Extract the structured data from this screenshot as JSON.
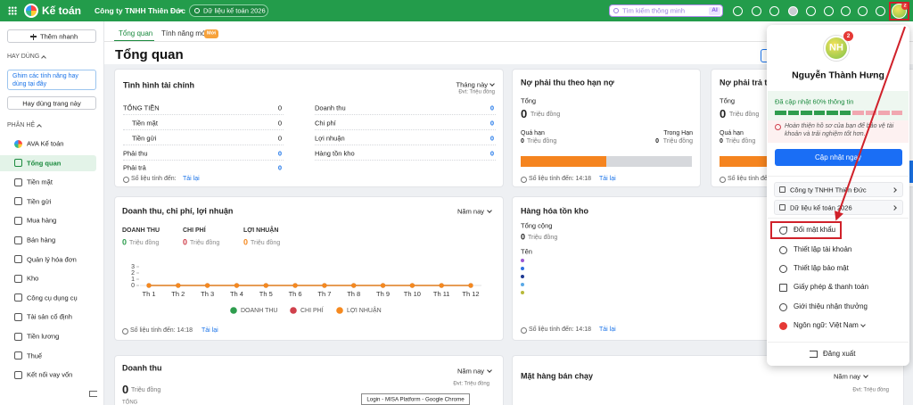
{
  "topbar": {
    "app_name": "Kế toán",
    "company": "Công ty TNHH Thiên Đức",
    "dataset": "Dữ liệu kế toán 2026",
    "search_placeholder": "Tìm kiếm thông minh",
    "ai_badge": "AI",
    "avatar_badge": "2"
  },
  "sidebar": {
    "quick_add": "Thêm nhanh",
    "favorites_heading": "HAY DÙNG",
    "favorites_hint": "Ghim các tính năng hay dùng tại đây",
    "favorite_page_button": "Hay dùng trang này",
    "modules_heading": "PHÂN HỆ",
    "modules": [
      "AVA Kế toán",
      "Tổng quan",
      "Tiền mặt",
      "Tiền gửi",
      "Mua hàng",
      "Bán hàng",
      "Quản lý hóa đơn",
      "Kho",
      "Công cụ dụng cụ",
      "Tài sản cố định",
      "Tiền lương",
      "Thuế",
      "Kết nối vay vốn"
    ]
  },
  "tabs": [
    {
      "label": "Tổng quan"
    },
    {
      "label": "Tính năng mới",
      "badge": "Mới"
    }
  ],
  "page_title": "Tổng quan",
  "financial_card": {
    "title": "Tình hình tài chính",
    "period": "Tháng này",
    "unit": "Đvt: Triệu đồng",
    "left_rows": [
      [
        "TỔNG TIỀN",
        "0"
      ],
      [
        "Tiền mặt",
        "0"
      ],
      [
        "Tiền gửi",
        "0"
      ],
      [
        "Phải thu",
        "0"
      ],
      [
        "Phải trả",
        "0"
      ]
    ],
    "right_rows": [
      [
        "Doanh thu",
        "0"
      ],
      [
        "Chi phí",
        "0"
      ],
      [
        "Lợi nhuận",
        "0"
      ],
      [
        "Hàng tồn kho",
        "0"
      ]
    ],
    "footer": "Số liệu tính đến:",
    "reload": "Tải lại"
  },
  "receivable_card": {
    "title": "Nợ phải thu theo hạn nợ",
    "total_label": "Tổng",
    "total": "0",
    "unit": "Triệu đồng",
    "overdue_label": "Quá hạn",
    "overdue": "0",
    "in_term_label": "Trong Hạn",
    "in_term": "0",
    "footer": "Số liệu tính đến: 14:18",
    "reload": "Tải lại"
  },
  "payable_card": {
    "title": "Nợ phải trả theo hạn nợ",
    "total_label": "Tổng",
    "total": "0",
    "unit": "Triệu đồng",
    "overdue_label": "Quá hạn",
    "overdue": "0",
    "footer": "Số liệu tính đến:"
  },
  "pnl_card": {
    "title": "Doanh thu, chi phí, lợi nhuận",
    "period": "Năm nay",
    "metrics": [
      {
        "label": "DOANH THU",
        "value": "0",
        "unit": "Triệu đồng"
      },
      {
        "label": "CHI PHÍ",
        "value": "0",
        "unit": "Triệu đồng"
      },
      {
        "label": "LỢI NHUẬN",
        "value": "0",
        "unit": "Triệu đồng"
      }
    ],
    "chart": {
      "type": "line",
      "categories": [
        "Th 1",
        "Th 2",
        "Th 3",
        "Th 4",
        "Th 5",
        "Th 6",
        "Th 7",
        "Th 8",
        "Th 9",
        "Th 10",
        "Th 11",
        "Th 12"
      ],
      "series": [
        {
          "name": "DOANH THU",
          "color": "#2e9d4e",
          "values": [
            0,
            0,
            0,
            0,
            0,
            0,
            0,
            0,
            0,
            0,
            0,
            0
          ]
        },
        {
          "name": "CHI PHÍ",
          "color": "#d0404c",
          "values": [
            0,
            0,
            0,
            0,
            0,
            0,
            0,
            0,
            0,
            0,
            0,
            0
          ]
        },
        {
          "name": "LỢI NHUẬN",
          "color": "#f5891f",
          "values": [
            0,
            0,
            0,
            0,
            0,
            0,
            0,
            0,
            0,
            0,
            0,
            0
          ]
        }
      ],
      "ylim": [
        0,
        3
      ],
      "yticks": [
        0,
        1,
        2,
        3
      ]
    },
    "footer": "Số liệu tính đến: 14:18",
    "reload": "Tải lại"
  },
  "inventory_card": {
    "title": "Hàng hóa tồn kho",
    "total_label": "Tổng cộng",
    "total": "0",
    "unit": "Triệu đồng",
    "name_header": "Tên",
    "footer": "Số liệu tính đến: 14:18",
    "reload": "Tải lại"
  },
  "revenue_card": {
    "title": "Doanh thu",
    "period": "Năm nay",
    "unit_note": "Đvt: Triệu đồng",
    "total": "0",
    "unit": "Triệu đồng",
    "total_label": "TỔNG"
  },
  "bestseller_card": {
    "title": "Mặt hàng bán chạy",
    "period": "Năm nay",
    "unit_note": "Đvt: Triệu đồng"
  },
  "user_menu": {
    "avatar_initials": "NH",
    "badge": "2",
    "name": "Nguyễn Thành Hưng",
    "profile_progress": "Đã cập nhật 60% thông tin",
    "progress_percent": 60,
    "profile_hint": "Hoàn thiện hồ sơ của bạn để bảo vệ tài khoản và trải nghiệm tốt hơn.",
    "update_button": "Cập nhật ngay",
    "company": "Công ty TNHH Thiên Đức",
    "dataset": "Dữ liệu kế toán 2026",
    "items": [
      "Đổi mật khẩu",
      "Thiết lập tài khoản",
      "Thiết lập bảo mật",
      "Giấy phép & thanh toán",
      "Giới thiệu nhận thưởng"
    ],
    "language": "Ngôn ngữ: Việt Nam",
    "logout": "Đăng xuất"
  },
  "tooltip": "Login - MISA Platform - Google Chrome"
}
